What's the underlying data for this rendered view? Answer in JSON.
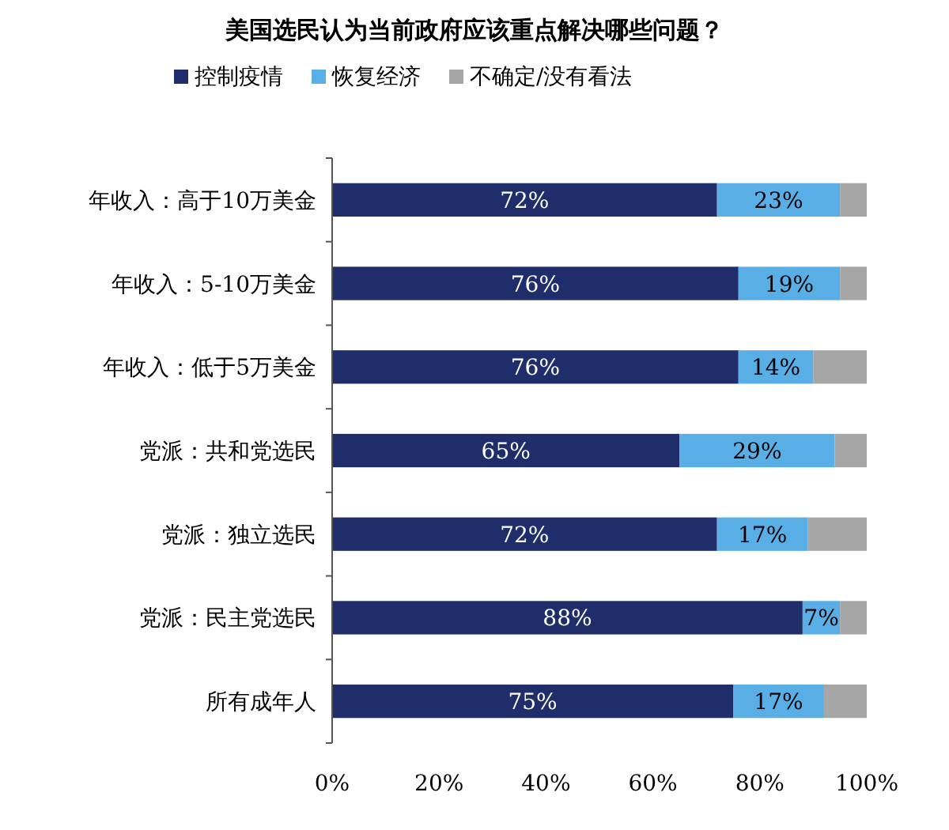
{
  "chart_data": {
    "type": "bar",
    "orientation": "horizontal",
    "stacked": true,
    "title": "美国选民认为当前政府应该重点解决哪些问题？",
    "categories": [
      "年收入：高于10万美金",
      "年收入：5-10万美金",
      "年收入：低于5万美金",
      "党派：共和党选民",
      "党派：独立选民",
      "党派：民主党选民",
      "所有成年人"
    ],
    "series": [
      {
        "name": "控制疫情",
        "color": "#1f2d6b",
        "values": [
          72,
          76,
          76,
          65,
          72,
          88,
          75
        ],
        "value_labels": [
          "72%",
          "76%",
          "76%",
          "65%",
          "72%",
          "88%",
          "75%"
        ]
      },
      {
        "name": "恢复经济",
        "color": "#5aaee6",
        "values": [
          23,
          19,
          14,
          29,
          17,
          7,
          17
        ],
        "value_labels": [
          "23%",
          "19%",
          "14%",
          "29%",
          "17%",
          "7%",
          "17%"
        ]
      },
      {
        "name": "不确定/没有看法",
        "color": "#a6a6a6",
        "values": [
          5,
          5,
          10,
          6,
          11,
          5,
          8
        ]
      }
    ],
    "xlim": [
      0,
      100
    ],
    "xticks": [
      {
        "value": 0,
        "label": "0%"
      },
      {
        "value": 20,
        "label": "20%"
      },
      {
        "value": 40,
        "label": "40%"
      },
      {
        "value": 60,
        "label": "60%"
      },
      {
        "value": 80,
        "label": "80%"
      },
      {
        "value": 100,
        "label": "100%"
      }
    ],
    "legend": "top",
    "grid": false
  }
}
